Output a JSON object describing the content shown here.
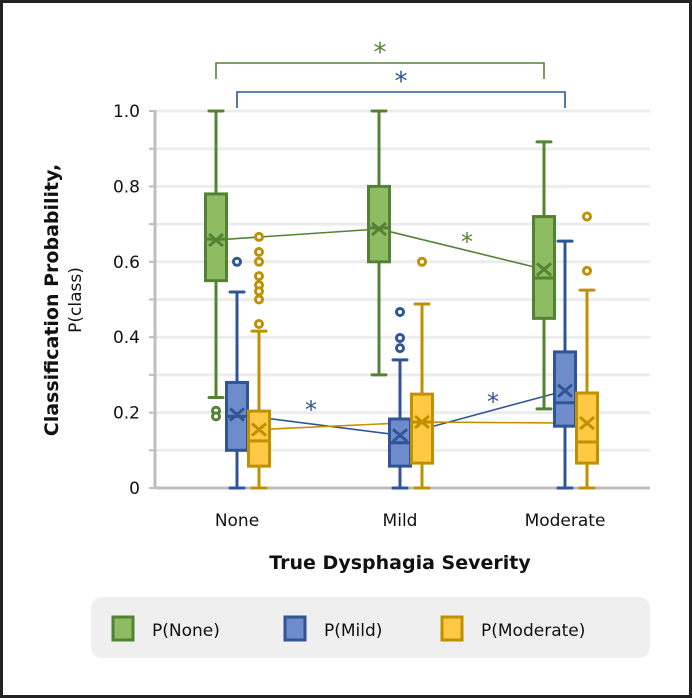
{
  "chart_data": {
    "type": "box",
    "title": "",
    "xlabel": "True Dysphagia Severity",
    "ylabel_line1": "Classification Probability,",
    "ylabel_line2": "P(class)",
    "ylim": [
      0,
      1
    ],
    "yticks": [
      0,
      0.2,
      0.4,
      0.6,
      0.8,
      1.0
    ],
    "ytick_labels": [
      "0",
      "0.2",
      "0.4",
      "0.6",
      "0.8",
      "1.0"
    ],
    "grid": true,
    "categories": [
      "None",
      "Mild",
      "Moderate"
    ],
    "legend_position": "bottom",
    "series": [
      {
        "name": "P(None)",
        "stroke": "#548235",
        "fill": "#8fbc62",
        "boxes": [
          {
            "min": 0.24,
            "q1": 0.55,
            "median": 0.66,
            "q3": 0.78,
            "max": 1.0,
            "mean": 0.658,
            "outliers": [
              0.205,
              0.19
            ]
          },
          {
            "min": 0.3,
            "q1": 0.6,
            "median": 0.69,
            "q3": 0.8,
            "max": 1.0,
            "mean": 0.687,
            "outliers": []
          },
          {
            "min": 0.21,
            "q1": 0.45,
            "median": 0.557,
            "q3": 0.72,
            "max": 0.918,
            "mean": 0.58,
            "outliers": []
          }
        ]
      },
      {
        "name": "P(Mild)",
        "stroke": "#2f5597",
        "fill": "#6e8bcb",
        "boxes": [
          {
            "min": 0,
            "q1": 0.1,
            "median": 0.19,
            "q3": 0.28,
            "max": 0.52,
            "mean": 0.195,
            "outliers": [
              0.6
            ]
          },
          {
            "min": 0,
            "q1": 0.058,
            "median": 0.12,
            "q3": 0.183,
            "max": 0.34,
            "mean": 0.14,
            "outliers": [
              0.467,
              0.398,
              0.371
            ]
          },
          {
            "min": 0,
            "q1": 0.164,
            "median": 0.226,
            "q3": 0.361,
            "max": 0.655,
            "mean": 0.258,
            "outliers": []
          }
        ]
      },
      {
        "name": "P(Moderate)",
        "stroke": "#bf9000",
        "fill": "#ffc845",
        "boxes": [
          {
            "min": 0,
            "q1": 0.058,
            "median": 0.125,
            "q3": 0.204,
            "max": 0.416,
            "mean": 0.155,
            "outliers": [
              0.666,
              0.626,
              0.6,
              0.562,
              0.538,
              0.522,
              0.5,
              0.435
            ]
          },
          {
            "min": 0,
            "q1": 0.066,
            "median": 0.175,
            "q3": 0.249,
            "max": 0.488,
            "mean": 0.175,
            "outliers": [
              0.6
            ]
          },
          {
            "min": 0,
            "q1": 0.066,
            "median": 0.122,
            "q3": 0.252,
            "max": 0.525,
            "mean": 0.172,
            "outliers": [
              0.72,
              0.576
            ]
          }
        ]
      }
    ],
    "significance": {
      "symbol": "*",
      "brackets": [
        {
          "series": 0,
          "from": "None",
          "to": "Moderate"
        },
        {
          "series": 1,
          "from": "None",
          "to": "Moderate"
        }
      ],
      "mean_line_marks": [
        {
          "series": 0,
          "between": [
            "Mild",
            "Moderate"
          ]
        },
        {
          "series": 1,
          "between": [
            "None",
            "Mild"
          ]
        },
        {
          "series": 1,
          "between": [
            "Mild",
            "Moderate"
          ]
        }
      ]
    }
  }
}
